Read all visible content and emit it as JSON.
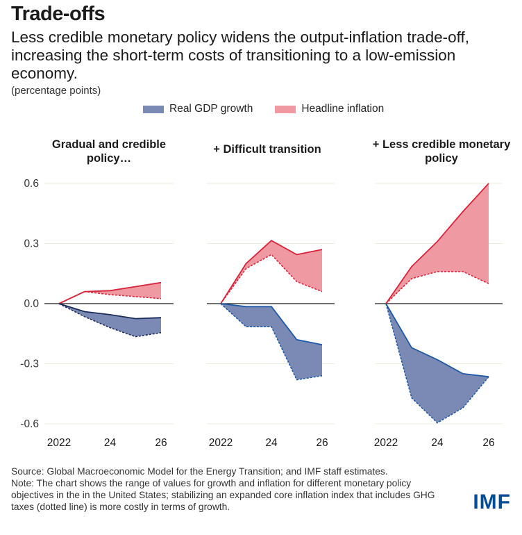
{
  "header": {
    "title": "Trade-offs",
    "subtitle": "Less credible monetary policy widens the output-inflation trade-off, increasing the short-term costs of transitioning to a low-emission economy.",
    "units": "(percentage points)"
  },
  "legend": {
    "gdp_label": "Real GDP growth",
    "inflation_label": "Headline inflation"
  },
  "colors": {
    "gdp_fill": "#7b8ab5",
    "gdp_line": "#1f5aa6",
    "gdp_line_dark": "#1c2d5a",
    "inflation_fill": "#ef9aa3",
    "inflation_line": "#d8243a",
    "grid": "#ececd9",
    "zero": "#1a1a1a"
  },
  "chart_data": {
    "type": "area",
    "ylim": [
      -0.6,
      0.6
    ],
    "yticks": [
      0.6,
      0.3,
      0.0,
      -0.3,
      -0.6
    ],
    "ytick_labels": [
      "0.6",
      "0.3",
      "0.0",
      "-0.3",
      "-0.6"
    ],
    "x": [
      2022,
      2023,
      2024,
      2025,
      2026
    ],
    "xtick_values": [
      2022,
      2024,
      2026
    ],
    "xtick_labels": [
      "2022",
      "24",
      "26"
    ],
    "panels": [
      {
        "title": "Gradual and credible policy…",
        "inflation_solid": [
          0.0,
          0.06,
          0.065,
          0.085,
          0.105
        ],
        "inflation_dotted": [
          0.0,
          0.06,
          0.045,
          0.035,
          0.025
        ],
        "gdp_solid": [
          0.0,
          -0.04,
          -0.055,
          -0.075,
          -0.07
        ],
        "gdp_dotted": [
          0.0,
          -0.065,
          -0.12,
          -0.165,
          -0.145
        ]
      },
      {
        "title": "+ Difficult transition",
        "inflation_solid": [
          0.0,
          0.2,
          0.315,
          0.245,
          0.27
        ],
        "inflation_dotted": [
          0.0,
          0.175,
          0.245,
          0.11,
          0.06
        ],
        "gdp_solid": [
          0.0,
          -0.015,
          -0.015,
          -0.18,
          -0.205
        ],
        "gdp_dotted": [
          0.0,
          -0.115,
          -0.115,
          -0.38,
          -0.36
        ]
      },
      {
        "title": "+ Less credible monetary policy",
        "inflation_solid": [
          0.0,
          0.185,
          0.31,
          0.46,
          0.6
        ],
        "inflation_dotted": [
          0.0,
          0.125,
          0.16,
          0.16,
          0.1
        ],
        "gdp_solid": [
          0.0,
          -0.22,
          -0.28,
          -0.35,
          -0.365
        ],
        "gdp_dotted": [
          0.0,
          -0.47,
          -0.595,
          -0.52,
          -0.365
        ]
      }
    ]
  },
  "footer": {
    "source": "Source: Global Macroeconomic Model for the Energy Transition; and IMF staff estimates.",
    "note": "Note: The chart shows the range of values for growth and inflation for different monetary policy objectives in the in the United States; stabilizing an expanded core inflation index that includes GHG taxes (dotted line) is more costly in terms of growth."
  },
  "logo": "IMF"
}
